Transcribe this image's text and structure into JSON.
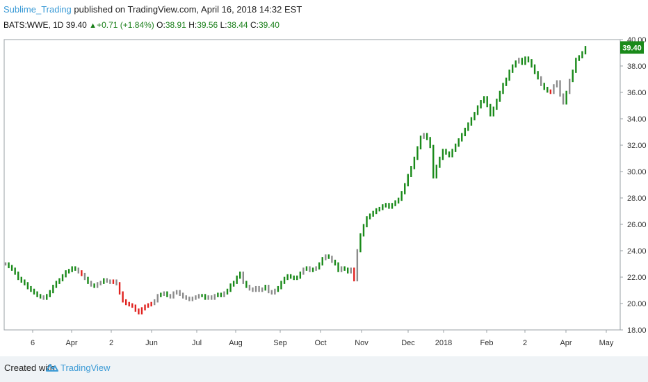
{
  "header": {
    "user": "Sublime_Trading",
    "published_text": "published on TradingView.com, April 16, 2018 14:32 EST",
    "symbol": "BATS:WWE, 1D",
    "last": "39.40",
    "change": "+0.71 (+1.84%)",
    "o_label": "O:",
    "o_value": "38.91",
    "h_label": "H:",
    "h_value": "39.56",
    "l_label": "L:",
    "l_value": "38.44",
    "c_label": "C:",
    "c_value": "39.40"
  },
  "footer": {
    "created_label": "Created with",
    "brand": "TradingView"
  },
  "colors": {
    "up": "#1a8a1a",
    "down": "#e0221f",
    "neutral": "#8c8c8c",
    "price_tag": "#1a8a1a",
    "brand": "#3c9bd6"
  },
  "chart_data": {
    "type": "line",
    "title": "BATS:WWE, 1D",
    "xlabel": "",
    "ylabel": "",
    "ylim": [
      18.0,
      40.0
    ],
    "y_ticks": [
      "18.00",
      "20.00",
      "22.00",
      "24.00",
      "26.00",
      "28.00",
      "30.00",
      "32.00",
      "34.00",
      "36.00",
      "38.00",
      "40.00"
    ],
    "x_ticks": [
      "6",
      "Apr",
      "2",
      "Jun",
      "Jul",
      "Aug",
      "Sep",
      "Oct",
      "Nov",
      "Dec",
      "2018",
      "Feb",
      "2",
      "Apr",
      "May"
    ],
    "last_price_label": "39.40",
    "series": [
      {
        "points": [
          [
            23.0,
            "n"
          ],
          [
            22.8,
            "u"
          ],
          [
            22.6,
            "u"
          ],
          [
            22.3,
            "u"
          ],
          [
            21.9,
            "u"
          ],
          [
            21.7,
            "u"
          ],
          [
            21.5,
            "u"
          ],
          [
            21.2,
            "u"
          ],
          [
            21.0,
            "u"
          ],
          [
            20.8,
            "u"
          ],
          [
            20.6,
            "u"
          ],
          [
            20.5,
            "u"
          ],
          [
            20.4,
            "n"
          ],
          [
            20.6,
            "u"
          ],
          [
            20.9,
            "u"
          ],
          [
            21.3,
            "u"
          ],
          [
            21.6,
            "u"
          ],
          [
            21.8,
            "u"
          ],
          [
            22.1,
            "u"
          ],
          [
            22.4,
            "u"
          ],
          [
            22.5,
            "u"
          ],
          [
            22.7,
            "u"
          ],
          [
            22.6,
            "u"
          ],
          [
            22.4,
            "n"
          ],
          [
            22.2,
            "d"
          ],
          [
            21.9,
            "n"
          ],
          [
            21.6,
            "u"
          ],
          [
            21.4,
            "n"
          ],
          [
            21.3,
            "u"
          ],
          [
            21.5,
            "n"
          ],
          [
            21.6,
            "n"
          ],
          [
            21.8,
            "u"
          ],
          [
            21.7,
            "n"
          ],
          [
            21.6,
            "n"
          ],
          [
            21.7,
            "d"
          ],
          [
            21.5,
            "n"
          ],
          [
            20.8,
            "d"
          ],
          [
            20.2,
            "d"
          ],
          [
            20.0,
            "d"
          ],
          [
            19.9,
            "d"
          ],
          [
            19.8,
            "d"
          ],
          [
            19.5,
            "d"
          ],
          [
            19.3,
            "d"
          ],
          [
            19.6,
            "d"
          ],
          [
            19.8,
            "d"
          ],
          [
            19.9,
            "d"
          ],
          [
            20.0,
            "d"
          ],
          [
            20.2,
            "n"
          ],
          [
            20.6,
            "n"
          ],
          [
            20.7,
            "u"
          ],
          [
            20.8,
            "n"
          ],
          [
            20.6,
            "u"
          ],
          [
            20.5,
            "n"
          ],
          [
            20.8,
            "n"
          ],
          [
            20.9,
            "n"
          ],
          [
            20.7,
            "n"
          ],
          [
            20.5,
            "n"
          ],
          [
            20.4,
            "n"
          ],
          [
            20.3,
            "n"
          ],
          [
            20.4,
            "n"
          ],
          [
            20.5,
            "n"
          ],
          [
            20.6,
            "n"
          ],
          [
            20.6,
            "u"
          ],
          [
            20.4,
            "u"
          ],
          [
            20.5,
            "n"
          ],
          [
            20.4,
            "n"
          ],
          [
            20.6,
            "n"
          ],
          [
            20.7,
            "u"
          ],
          [
            20.6,
            "u"
          ],
          [
            20.8,
            "n"
          ],
          [
            21.0,
            "u"
          ],
          [
            21.4,
            "u"
          ],
          [
            21.6,
            "u"
          ],
          [
            22.0,
            "u"
          ],
          [
            22.3,
            "u"
          ],
          [
            21.6,
            "n"
          ],
          [
            21.3,
            "u"
          ],
          [
            21.1,
            "n"
          ],
          [
            21.0,
            "n"
          ],
          [
            21.2,
            "n"
          ],
          [
            21.0,
            "n"
          ],
          [
            21.1,
            "n"
          ],
          [
            21.3,
            "u"
          ],
          [
            20.9,
            "n"
          ],
          [
            20.8,
            "n"
          ],
          [
            21.0,
            "n"
          ],
          [
            21.2,
            "u"
          ],
          [
            21.6,
            "u"
          ],
          [
            21.9,
            "u"
          ],
          [
            22.1,
            "u"
          ],
          [
            22.0,
            "u"
          ],
          [
            21.9,
            "u"
          ],
          [
            22.0,
            "u"
          ],
          [
            22.3,
            "u"
          ],
          [
            22.6,
            "n"
          ],
          [
            22.7,
            "u"
          ],
          [
            22.5,
            "n"
          ],
          [
            22.6,
            "u"
          ],
          [
            22.7,
            "n"
          ],
          [
            23.0,
            "u"
          ],
          [
            23.4,
            "u"
          ],
          [
            23.6,
            "n"
          ],
          [
            23.5,
            "u"
          ],
          [
            23.2,
            "n"
          ],
          [
            23.0,
            "u"
          ],
          [
            22.5,
            "u"
          ],
          [
            22.7,
            "n"
          ],
          [
            22.6,
            "u"
          ],
          [
            22.4,
            "u"
          ],
          [
            22.6,
            "n"
          ],
          [
            21.8,
            "d"
          ],
          [
            24.0,
            "n"
          ],
          [
            25.2,
            "u"
          ],
          [
            25.9,
            "u"
          ],
          [
            26.5,
            "u"
          ],
          [
            26.7,
            "u"
          ],
          [
            26.9,
            "u"
          ],
          [
            27.1,
            "u"
          ],
          [
            27.2,
            "u"
          ],
          [
            27.4,
            "u"
          ],
          [
            27.5,
            "u"
          ],
          [
            27.3,
            "u"
          ],
          [
            27.5,
            "u"
          ],
          [
            27.7,
            "u"
          ],
          [
            27.9,
            "u"
          ],
          [
            28.4,
            "u"
          ],
          [
            29.0,
            "u"
          ],
          [
            29.7,
            "u"
          ],
          [
            30.3,
            "u"
          ],
          [
            31.0,
            "u"
          ],
          [
            31.8,
            "u"
          ],
          [
            32.6,
            "u"
          ],
          [
            32.8,
            "n"
          ],
          [
            32.5,
            "u"
          ],
          [
            31.9,
            "u"
          ],
          [
            29.6,
            "u"
          ],
          [
            30.4,
            "u"
          ],
          [
            31.0,
            "u"
          ],
          [
            31.6,
            "u"
          ],
          [
            31.4,
            "u"
          ],
          [
            31.2,
            "u"
          ],
          [
            31.6,
            "u"
          ],
          [
            32.0,
            "u"
          ],
          [
            32.4,
            "u"
          ],
          [
            32.8,
            "u"
          ],
          [
            33.2,
            "u"
          ],
          [
            33.6,
            "u"
          ],
          [
            34.0,
            "u"
          ],
          [
            34.4,
            "u"
          ],
          [
            34.9,
            "u"
          ],
          [
            35.3,
            "u"
          ],
          [
            35.6,
            "u"
          ],
          [
            35.0,
            "u"
          ],
          [
            34.3,
            "u"
          ],
          [
            34.8,
            "u"
          ],
          [
            35.4,
            "u"
          ],
          [
            36.0,
            "u"
          ],
          [
            36.6,
            "u"
          ],
          [
            37.0,
            "u"
          ],
          [
            37.6,
            "u"
          ],
          [
            38.0,
            "u"
          ],
          [
            38.3,
            "u"
          ],
          [
            38.5,
            "n"
          ],
          [
            38.2,
            "u"
          ],
          [
            38.6,
            "u"
          ],
          [
            38.4,
            "u"
          ],
          [
            38.0,
            "u"
          ],
          [
            37.5,
            "u"
          ],
          [
            37.1,
            "u"
          ],
          [
            36.6,
            "n"
          ],
          [
            36.3,
            "u"
          ],
          [
            36.1,
            "u"
          ],
          [
            36.0,
            "d"
          ],
          [
            36.5,
            "n"
          ],
          [
            36.8,
            "n"
          ],
          [
            35.8,
            "n"
          ],
          [
            35.2,
            "n"
          ],
          [
            36.0,
            "u"
          ],
          [
            36.9,
            "n"
          ],
          [
            37.6,
            "u"
          ],
          [
            38.5,
            "u"
          ],
          [
            38.7,
            "u"
          ],
          [
            39.0,
            "u"
          ],
          [
            39.4,
            "u"
          ]
        ]
      }
    ]
  }
}
